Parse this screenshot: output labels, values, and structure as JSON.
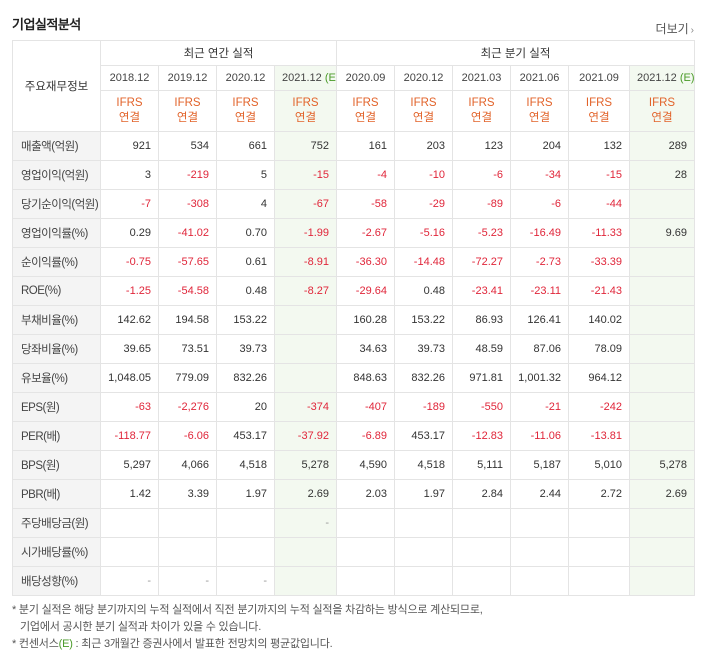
{
  "title": "기업실적분석",
  "more_label": "더보기",
  "header": {
    "row_label": "주요재무정보",
    "annual_group": "최근 연간 실적",
    "quarter_group": "최근 분기 실적",
    "annual_periods": [
      "2018.12",
      "2019.12",
      "2020.12",
      "2021.12"
    ],
    "annual_estimate_suffix": "(E)",
    "quarter_periods": [
      "2020.09",
      "2020.12",
      "2021.03",
      "2021.06",
      "2021.09",
      "2021.12"
    ],
    "quarter_estimate_suffix": "(E)",
    "basis_line1": "IFRS",
    "basis_line2": "연결"
  },
  "rows": [
    {
      "label": "매출액(억원)",
      "annual": [
        "921",
        "534",
        "661",
        "752"
      ],
      "quarter": [
        "161",
        "203",
        "123",
        "204",
        "132",
        "289"
      ]
    },
    {
      "label": "영업이익(억원)",
      "annual": [
        "3",
        "-219",
        "5",
        "-15"
      ],
      "quarter": [
        "-4",
        "-10",
        "-6",
        "-34",
        "-15",
        "28"
      ]
    },
    {
      "label": "당기순이익(억원)",
      "annual": [
        "-7",
        "-308",
        "4",
        "-67"
      ],
      "quarter": [
        "-58",
        "-29",
        "-89",
        "-6",
        "-44",
        ""
      ]
    },
    {
      "label": "영업이익률(%)",
      "annual": [
        "0.29",
        "-41.02",
        "0.70",
        "-1.99"
      ],
      "quarter": [
        "-2.67",
        "-5.16",
        "-5.23",
        "-16.49",
        "-11.33",
        "9.69"
      ]
    },
    {
      "label": "순이익률(%)",
      "annual": [
        "-0.75",
        "-57.65",
        "0.61",
        "-8.91"
      ],
      "quarter": [
        "-36.30",
        "-14.48",
        "-72.27",
        "-2.73",
        "-33.39",
        ""
      ]
    },
    {
      "label": "ROE(%)",
      "annual": [
        "-1.25",
        "-54.58",
        "0.48",
        "-8.27"
      ],
      "quarter": [
        "-29.64",
        "0.48",
        "-23.41",
        "-23.11",
        "-21.43",
        ""
      ]
    },
    {
      "label": "부채비율(%)",
      "annual": [
        "142.62",
        "194.58",
        "153.22",
        ""
      ],
      "quarter": [
        "160.28",
        "153.22",
        "86.93",
        "126.41",
        "140.02",
        ""
      ]
    },
    {
      "label": "당좌비율(%)",
      "annual": [
        "39.65",
        "73.51",
        "39.73",
        ""
      ],
      "quarter": [
        "34.63",
        "39.73",
        "48.59",
        "87.06",
        "78.09",
        ""
      ]
    },
    {
      "label": "유보율(%)",
      "annual": [
        "1,048.05",
        "779.09",
        "832.26",
        ""
      ],
      "quarter": [
        "848.63",
        "832.26",
        "971.81",
        "1,001.32",
        "964.12",
        ""
      ]
    },
    {
      "label": "EPS(원)",
      "annual": [
        "-63",
        "-2,276",
        "20",
        "-374"
      ],
      "quarter": [
        "-407",
        "-189",
        "-550",
        "-21",
        "-242",
        ""
      ]
    },
    {
      "label": "PER(배)",
      "annual": [
        "-118.77",
        "-6.06",
        "453.17",
        "-37.92"
      ],
      "quarter": [
        "-6.89",
        "453.17",
        "-12.83",
        "-11.06",
        "-13.81",
        ""
      ]
    },
    {
      "label": "BPS(원)",
      "annual": [
        "5,297",
        "4,066",
        "4,518",
        "5,278"
      ],
      "quarter": [
        "4,590",
        "4,518",
        "5,111",
        "5,187",
        "5,010",
        "5,278"
      ]
    },
    {
      "label": "PBR(배)",
      "annual": [
        "1.42",
        "3.39",
        "1.97",
        "2.69"
      ],
      "quarter": [
        "2.03",
        "1.97",
        "2.84",
        "2.44",
        "2.72",
        "2.69"
      ]
    },
    {
      "label": "주당배당금(원)",
      "annual": [
        "",
        "",
        "",
        "-"
      ],
      "quarter": [
        "",
        "",
        "",
        "",
        "",
        ""
      ]
    },
    {
      "label": "시가배당률(%)",
      "annual": [
        "",
        "",
        "",
        ""
      ],
      "quarter": [
        "",
        "",
        "",
        "",
        "",
        ""
      ]
    },
    {
      "label": "배당성향(%)",
      "annual": [
        "-",
        "-",
        "-",
        ""
      ],
      "quarter": [
        "",
        "",
        "",
        "",
        "",
        ""
      ]
    }
  ],
  "notes": {
    "line1": "* 분기 실적은 해당 분기까지의 누적 실적에서 직전 분기까지의 누적 실적을 차감하는 방식으로 계산되므로,",
    "line2": "기업에서 공시한 분기 실적과 차이가 있을 수 있습니다.",
    "line3_prefix": "* 컨센서스",
    "line3_mark": "(E)",
    "line3_suffix": " : 최근 3개월간 증권사에서 발표한 전망치의 평균값입니다."
  },
  "colors": {
    "negative": "#e0263a",
    "basis": "#e2632a",
    "estimate_mark": "#4a9a28",
    "estimate_bg": "#f3f9f0",
    "label_bg": "#f4f4f4"
  }
}
